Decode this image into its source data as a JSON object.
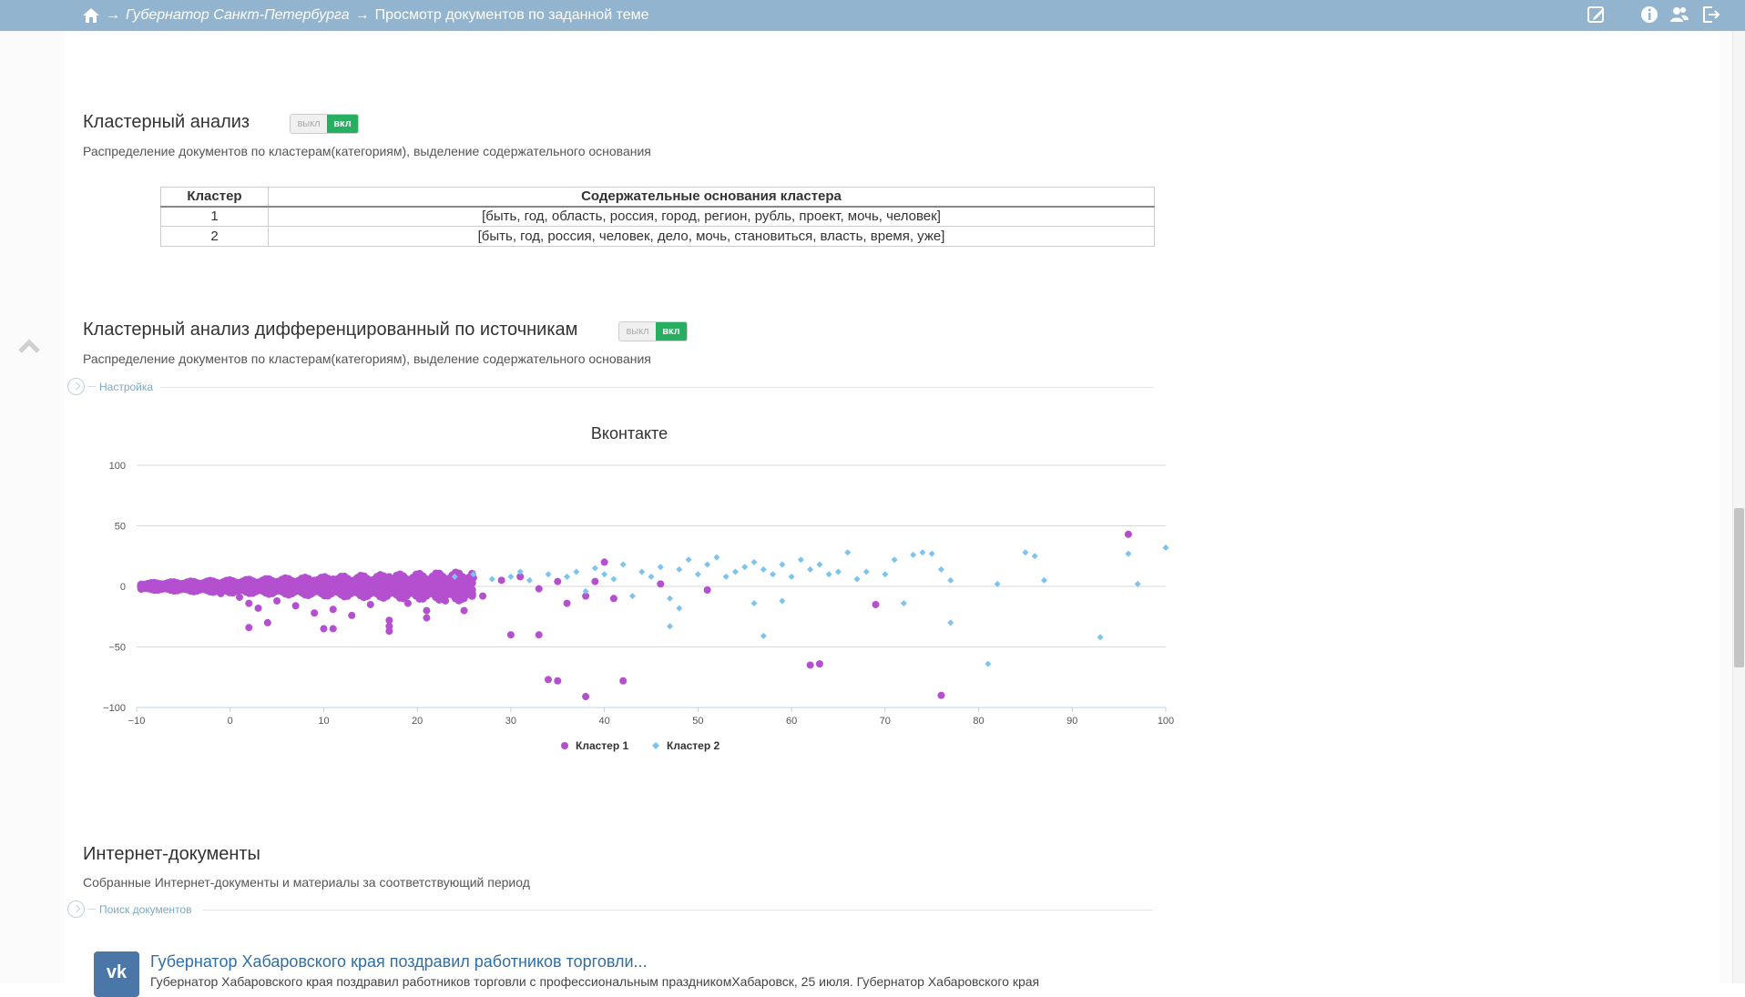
{
  "header": {
    "sep1": "→",
    "crumb_governor": "Губернатор Санкт-Петербурга",
    "sep2": "→",
    "crumb_current": "Просмотр документов по заданной теме"
  },
  "cluster_section": {
    "title": "Кластерный анализ",
    "toggle_off": "выкл",
    "toggle_on": "вкл",
    "description": "Распределение документов по кластерам(категориям), выделение содержательного основания",
    "table": {
      "headers": [
        "Кластер",
        "Содержательные основания кластера"
      ],
      "rows": [
        [
          "1",
          "[быть, год, область, россия, город, регион, рубль, проект, мочь, человек]"
        ],
        [
          "2",
          "[быть, год, россия, человек, дело, мочь, становиться, власть, время, уже]"
        ]
      ]
    }
  },
  "source_section": {
    "title": "Кластерный анализ дифференцированный по источникам",
    "toggle_off": "выкл",
    "toggle_on": "вкл",
    "description": "Распределение документов по кластерам(категориям), выделение содержательного основания",
    "settings_label": "Настройка"
  },
  "chart_data": {
    "type": "scatter",
    "title": "Вконтакте",
    "xlabel": "",
    "ylabel": "",
    "xlim": [
      -10,
      100
    ],
    "ylim": [
      -100,
      100
    ],
    "xticks": [
      "−10",
      "0",
      "10",
      "20",
      "30",
      "40",
      "50",
      "60",
      "70",
      "80",
      "90",
      "100"
    ],
    "yticks": [
      "100",
      "50",
      "0",
      "−50",
      "−100"
    ],
    "grid": true,
    "legend_position": "bottom",
    "series": [
      {
        "name": "Кластер 1",
        "color": "#b44fd0",
        "marker": "circle",
        "points": [
          [
            -9,
            1
          ],
          [
            -8,
            0
          ],
          [
            -7,
            2
          ],
          [
            -6,
            -1
          ],
          [
            -5,
            1
          ],
          [
            -4,
            0
          ],
          [
            -3,
            2
          ],
          [
            -2,
            -2
          ],
          [
            -1,
            1
          ],
          [
            0,
            3
          ],
          [
            1,
            -1
          ],
          [
            2,
            2
          ],
          [
            3,
            -3
          ],
          [
            4,
            1
          ],
          [
            5,
            4
          ],
          [
            6,
            -2
          ],
          [
            7,
            3
          ],
          [
            8,
            -4
          ],
          [
            9,
            5
          ],
          [
            10,
            -3
          ],
          [
            11,
            6
          ],
          [
            12,
            -5
          ],
          [
            13,
            2
          ],
          [
            14,
            7
          ],
          [
            15,
            -6
          ],
          [
            16,
            4
          ],
          [
            17,
            8
          ],
          [
            18,
            -7
          ],
          [
            19,
            5
          ],
          [
            20,
            9
          ],
          [
            21,
            -8
          ],
          [
            22,
            6
          ],
          [
            23,
            -4
          ],
          [
            24,
            10
          ],
          [
            25,
            -10
          ],
          [
            26,
            7
          ],
          [
            -1,
            -6
          ],
          [
            1,
            -9
          ],
          [
            2,
            -14
          ],
          [
            3,
            -18
          ],
          [
            5,
            -12
          ],
          [
            7,
            -16
          ],
          [
            9,
            -22
          ],
          [
            11,
            -19
          ],
          [
            13,
            -24
          ],
          [
            15,
            -15
          ],
          [
            17,
            -28
          ],
          [
            19,
            -14
          ],
          [
            21,
            -20
          ],
          [
            23,
            -12
          ],
          [
            2,
            -34
          ],
          [
            4,
            -30
          ],
          [
            10,
            -35
          ],
          [
            11,
            -35
          ],
          [
            17,
            -33
          ],
          [
            17,
            -37
          ],
          [
            21,
            -26
          ],
          [
            25,
            -20
          ],
          [
            27,
            -8
          ],
          [
            29,
            5
          ],
          [
            31,
            8
          ],
          [
            33,
            -2
          ],
          [
            35,
            4
          ],
          [
            36,
            -14
          ],
          [
            38,
            -8
          ],
          [
            39,
            4
          ],
          [
            40,
            20
          ],
          [
            41,
            -10
          ],
          [
            30,
            -40
          ],
          [
            33,
            -40
          ],
          [
            34,
            -77
          ],
          [
            35,
            -78
          ],
          [
            38,
            -91
          ],
          [
            42,
            -78
          ],
          [
            46,
            2
          ],
          [
            51,
            -3
          ],
          [
            62,
            -65
          ],
          [
            63,
            -64
          ],
          [
            69,
            -15
          ],
          [
            76,
            -90
          ],
          [
            96,
            43
          ]
        ]
      },
      {
        "name": "Кластер 2",
        "color": "#7cc4f0",
        "marker": "diamond",
        "points": [
          [
            24,
            8
          ],
          [
            26,
            10
          ],
          [
            28,
            6
          ],
          [
            30,
            8
          ],
          [
            31,
            12
          ],
          [
            32,
            5
          ],
          [
            34,
            10
          ],
          [
            36,
            8
          ],
          [
            37,
            12
          ],
          [
            38,
            -4
          ],
          [
            39,
            15
          ],
          [
            40,
            10
          ],
          [
            41,
            6
          ],
          [
            42,
            18
          ],
          [
            43,
            -8
          ],
          [
            44,
            12
          ],
          [
            45,
            8
          ],
          [
            46,
            16
          ],
          [
            47,
            -10
          ],
          [
            48,
            14
          ],
          [
            49,
            22
          ],
          [
            50,
            10
          ],
          [
            51,
            18
          ],
          [
            52,
            24
          ],
          [
            53,
            8
          ],
          [
            54,
            12
          ],
          [
            55,
            16
          ],
          [
            56,
            20
          ],
          [
            57,
            14
          ],
          [
            58,
            10
          ],
          [
            59,
            18
          ],
          [
            60,
            8
          ],
          [
            61,
            22
          ],
          [
            62,
            14
          ],
          [
            63,
            18
          ],
          [
            64,
            10
          ],
          [
            65,
            12
          ],
          [
            66,
            28
          ],
          [
            67,
            6
          ],
          [
            68,
            12
          ],
          [
            70,
            10
          ],
          [
            71,
            22
          ],
          [
            72,
            -14
          ],
          [
            73,
            26
          ],
          [
            74,
            28
          ],
          [
            75,
            27
          ],
          [
            76,
            14
          ],
          [
            77,
            5
          ],
          [
            82,
            2
          ],
          [
            85,
            28
          ],
          [
            86,
            25
          ],
          [
            87,
            5
          ],
          [
            93,
            -42
          ],
          [
            96,
            27
          ],
          [
            97,
            2
          ],
          [
            100,
            32
          ],
          [
            47,
            -33
          ],
          [
            57,
            -41
          ],
          [
            77,
            -30
          ],
          [
            81,
            -64
          ],
          [
            56,
            -14
          ],
          [
            59,
            -12
          ],
          [
            48,
            -18
          ]
        ]
      }
    ]
  },
  "internet_section": {
    "title": "Интернет-документы",
    "description": "Собранные Интернет-документы и материалы за соответствующий период",
    "search_label": "Поиск документов",
    "doc": {
      "source_icon": "vk-icon",
      "source_text": "vk",
      "title": "Губернатор Хабаровского края поздравил работников торговли...",
      "snippet": "Губернатор Хабаровского края поздравил работников торговли с профессиональным праздникомХабаровск, 25 июля. Губернатор Хабаровского края"
    }
  }
}
